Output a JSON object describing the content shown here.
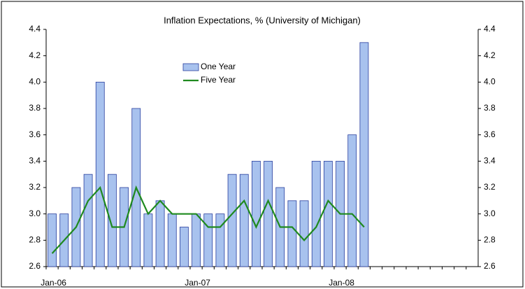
{
  "chart_data": {
    "type": "bar",
    "title": "Inflation Expectations, % (University of Michigan)",
    "categories": [
      "Jan-06",
      null,
      null,
      null,
      null,
      null,
      null,
      null,
      null,
      null,
      null,
      null,
      "Jan-07",
      null,
      null,
      null,
      null,
      null,
      null,
      null,
      null,
      null,
      null,
      null,
      "Jan-08",
      null,
      null,
      null,
      null,
      null,
      null,
      null,
      null,
      null,
      null,
      null
    ],
    "series": [
      {
        "name": "One Year",
        "type": "bar",
        "color": "#a8c2ee",
        "values": [
          3.0,
          3.0,
          3.2,
          3.3,
          4.0,
          3.3,
          3.2,
          3.8,
          3.0,
          3.1,
          3.0,
          2.9,
          3.0,
          3.0,
          3.0,
          3.3,
          3.3,
          3.4,
          3.4,
          3.2,
          3.1,
          3.1,
          3.4,
          3.4,
          3.4,
          3.6,
          4.3,
          null,
          null,
          null,
          null,
          null,
          null,
          null,
          null,
          null
        ]
      },
      {
        "name": "Five Year",
        "type": "line",
        "color": "#1f8a1f",
        "values": [
          2.7,
          2.8,
          2.9,
          3.1,
          3.2,
          2.9,
          2.9,
          3.2,
          3.0,
          3.1,
          3.0,
          3.0,
          3.0,
          2.9,
          2.9,
          3.0,
          3.1,
          2.9,
          3.1,
          2.9,
          2.9,
          2.8,
          2.9,
          3.1,
          3.0,
          3.0,
          2.9,
          null,
          null,
          null,
          null,
          null,
          null,
          null,
          null,
          null
        ]
      }
    ],
    "ylim": [
      2.6,
      4.4
    ],
    "yticks": [
      2.6,
      2.8,
      {
        "value": 3,
        "label": "3.0"
      },
      3.2,
      3.4,
      3.6,
      3.8,
      {
        "value": 4,
        "label": "4.0"
      },
      4.2,
      4.4
    ],
    "y2lim": [
      2.6,
      4.4
    ],
    "y2ticks": [
      2.6,
      2.8,
      {
        "value": 3,
        "label": "3.0"
      },
      3.2,
      3.4,
      3.6,
      3.8,
      {
        "value": 4,
        "label": "4.0"
      },
      4.2,
      4.4
    ],
    "legend": "upper-center"
  }
}
